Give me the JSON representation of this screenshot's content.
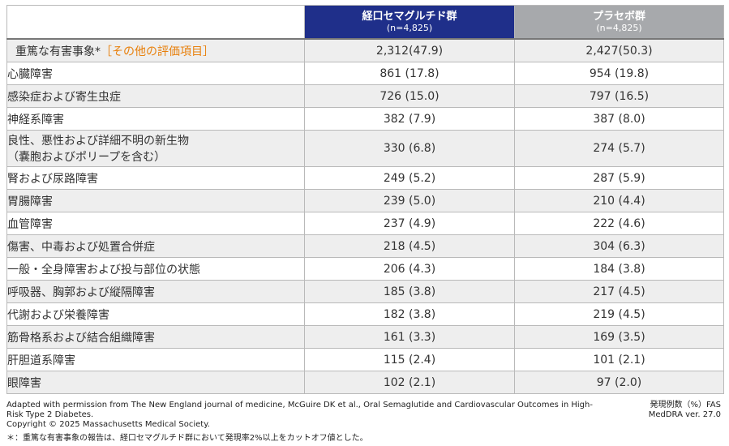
{
  "header": {
    "col1": {
      "name": "経口セマグルチド群",
      "n": "(n=4,825)"
    },
    "col2": {
      "name": "プラセボ群",
      "n": "(n=4,825)"
    }
  },
  "top_row": {
    "label": "重篤な有害事象*",
    "label_tag": "［その他の評価項目］",
    "v1": "2,312(47.9)",
    "v2": "2,427(50.3)"
  },
  "rows": [
    {
      "label": "心臓障害",
      "v1": "861 (17.8)",
      "v2": "954 (19.8)"
    },
    {
      "label": "感染症および寄生虫症",
      "v1": "726 (15.0)",
      "v2": "797 (16.5)"
    },
    {
      "label": "神経系障害",
      "v1": "382 (7.9)",
      "v2": "387 (8.0)"
    },
    {
      "label": "良性、悪性および詳細不明の新生物",
      "label2": "（嚢胞およびポリープを含む）",
      "v1": "330 (6.8)",
      "v2": "274 (5.7)"
    },
    {
      "label": "腎および尿路障害",
      "v1": "249 (5.2)",
      "v2": "287 (5.9)"
    },
    {
      "label": "胃腸障害",
      "v1": "239 (5.0)",
      "v2": "210 (4.4)"
    },
    {
      "label": "血管障害",
      "v1": "237 (4.9)",
      "v2": "222 (4.6)"
    },
    {
      "label": "傷害、中毒および処置合併症",
      "v1": "218 (4.5)",
      "v2": "304 (6.3)"
    },
    {
      "label": "一般・全身障害および投与部位の状態",
      "v1": "206 (4.3)",
      "v2": "184 (3.8)"
    },
    {
      "label": "呼吸器、胸郭および縦隔障害",
      "v1": "185 (3.8)",
      "v2": "217 (4.5)"
    },
    {
      "label": "代謝および栄養障害",
      "v1": "182 (3.8)",
      "v2": "219 (4.5)"
    },
    {
      "label": "筋骨格系および結合組織障害",
      "v1": "161 (3.3)",
      "v2": "169 (3.5)"
    },
    {
      "label": "肝胆道系障害",
      "v1": "115 (2.4)",
      "v2": "101 (2.1)"
    },
    {
      "label": "眼障害",
      "v1": "102 (2.1)",
      "v2": "97 (2.0)"
    }
  ],
  "footer": {
    "source": "Adapted with permission from The New England journal of medicine, McGuire DK et al., Oral Semaglutide and Cardiovascular Outcomes in High-Risk Type 2 Diabetes.",
    "copyright": "Copyright © 2025 Massachusetts Medical Society.",
    "right1": "発現例数（%）FAS",
    "right2": "MedDRA ver. 27.0",
    "note": "＊：重篤な有害事象の報告は、経口セマグルチド群において発現率2%以上をカットオフ値とした。"
  },
  "colors": {
    "header_drug": "#1f2f8a",
    "header_placebo": "#a7a9ac",
    "tag": "#e8800c",
    "row_alt": "#eeeeee"
  }
}
